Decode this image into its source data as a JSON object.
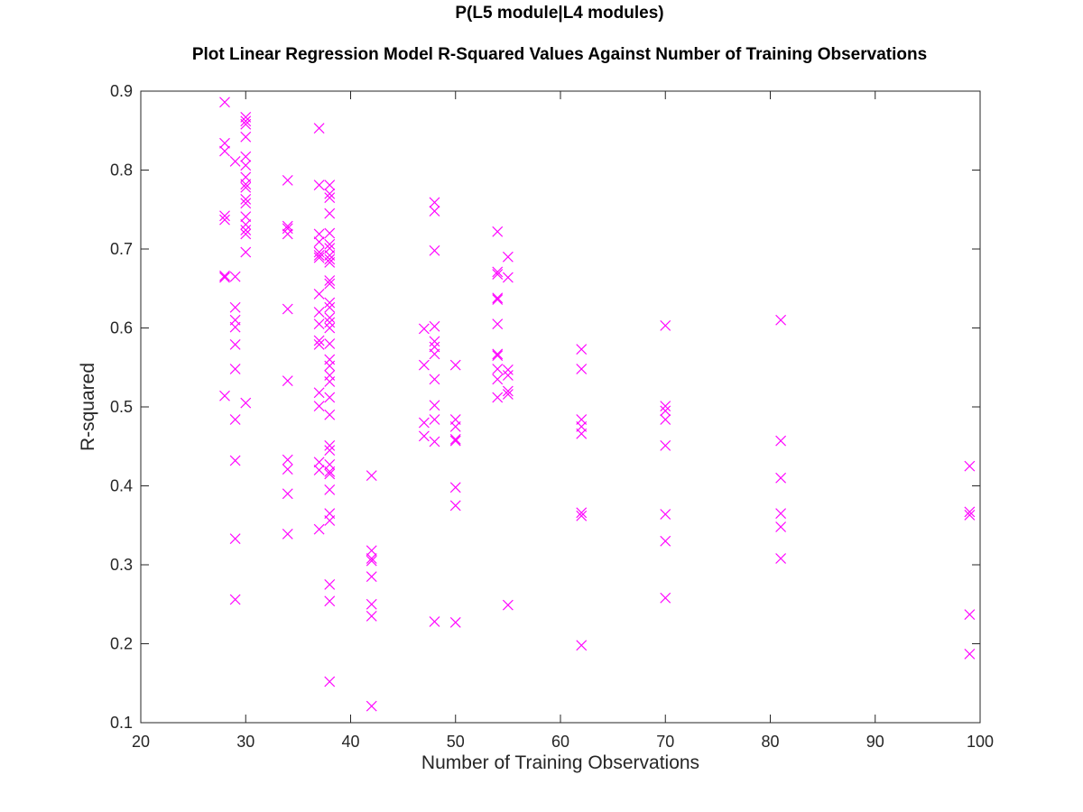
{
  "figure": {
    "supertitle": "P(L5 module|L4 modules)",
    "title": "Plot Linear Regression Model R-Squared Values Against Number of Training Observations"
  },
  "chart_data": {
    "type": "scatter",
    "title": "Plot Linear Regression Model R-Squared Values Against Number of Training Observations",
    "xlabel": "Number of Training Observations",
    "ylabel": "R-squared",
    "xlim": [
      20,
      100
    ],
    "ylim": [
      0.1,
      0.9
    ],
    "xticks": [
      20,
      30,
      40,
      50,
      60,
      70,
      80,
      90,
      100
    ],
    "yticks": [
      0.1,
      0.2,
      0.3,
      0.4,
      0.5,
      0.6,
      0.7,
      0.8,
      0.9
    ],
    "grid": false,
    "marker": "x",
    "marker_color": "#ff00ff",
    "points": [
      [
        28,
        0.886
      ],
      [
        28,
        0.834
      ],
      [
        28,
        0.824
      ],
      [
        28,
        0.742
      ],
      [
        28,
        0.737
      ],
      [
        28,
        0.666
      ],
      [
        28,
        0.664
      ],
      [
        28,
        0.514
      ],
      [
        29,
        0.811
      ],
      [
        29,
        0.665
      ],
      [
        29,
        0.626
      ],
      [
        29,
        0.61
      ],
      [
        29,
        0.601
      ],
      [
        29,
        0.579
      ],
      [
        29,
        0.548
      ],
      [
        29,
        0.484
      ],
      [
        29,
        0.432
      ],
      [
        29,
        0.333
      ],
      [
        29,
        0.256
      ],
      [
        30,
        0.867
      ],
      [
        30,
        0.862
      ],
      [
        30,
        0.858
      ],
      [
        30,
        0.842
      ],
      [
        30,
        0.817
      ],
      [
        30,
        0.806
      ],
      [
        30,
        0.791
      ],
      [
        30,
        0.782
      ],
      [
        30,
        0.778
      ],
      [
        30,
        0.763
      ],
      [
        30,
        0.758
      ],
      [
        30,
        0.741
      ],
      [
        30,
        0.731
      ],
      [
        30,
        0.724
      ],
      [
        30,
        0.719
      ],
      [
        30,
        0.696
      ],
      [
        30,
        0.505
      ],
      [
        34,
        0.787
      ],
      [
        34,
        0.729
      ],
      [
        34,
        0.726
      ],
      [
        34,
        0.719
      ],
      [
        34,
        0.624
      ],
      [
        34,
        0.533
      ],
      [
        34,
        0.433
      ],
      [
        34,
        0.421
      ],
      [
        34,
        0.39
      ],
      [
        34,
        0.339
      ],
      [
        37,
        0.853
      ],
      [
        37,
        0.781
      ],
      [
        37,
        0.719
      ],
      [
        37,
        0.709
      ],
      [
        37,
        0.696
      ],
      [
        37,
        0.692
      ],
      [
        37,
        0.689
      ],
      [
        37,
        0.643
      ],
      [
        37,
        0.62
      ],
      [
        37,
        0.605
      ],
      [
        37,
        0.584
      ],
      [
        37,
        0.579
      ],
      [
        37,
        0.518
      ],
      [
        37,
        0.501
      ],
      [
        37,
        0.43
      ],
      [
        37,
        0.42
      ],
      [
        37,
        0.345
      ],
      [
        38,
        0.781
      ],
      [
        38,
        0.77
      ],
      [
        38,
        0.765
      ],
      [
        38,
        0.745
      ],
      [
        38,
        0.72
      ],
      [
        38,
        0.706
      ],
      [
        38,
        0.701
      ],
      [
        38,
        0.692
      ],
      [
        38,
        0.687
      ],
      [
        38,
        0.683
      ],
      [
        38,
        0.66
      ],
      [
        38,
        0.656
      ],
      [
        38,
        0.632
      ],
      [
        38,
        0.626
      ],
      [
        38,
        0.613
      ],
      [
        38,
        0.607
      ],
      [
        38,
        0.6
      ],
      [
        38,
        0.58
      ],
      [
        38,
        0.56
      ],
      [
        38,
        0.552
      ],
      [
        38,
        0.54
      ],
      [
        38,
        0.532
      ],
      [
        38,
        0.512
      ],
      [
        38,
        0.49
      ],
      [
        38,
        0.451
      ],
      [
        38,
        0.445
      ],
      [
        38,
        0.427
      ],
      [
        38,
        0.418
      ],
      [
        38,
        0.415
      ],
      [
        38,
        0.395
      ],
      [
        38,
        0.365
      ],
      [
        38,
        0.356
      ],
      [
        38,
        0.275
      ],
      [
        38,
        0.254
      ],
      [
        38,
        0.152
      ],
      [
        42,
        0.413
      ],
      [
        42,
        0.318
      ],
      [
        42,
        0.308
      ],
      [
        42,
        0.305
      ],
      [
        42,
        0.285
      ],
      [
        42,
        0.25
      ],
      [
        42,
        0.235
      ],
      [
        42,
        0.121
      ],
      [
        47,
        0.599
      ],
      [
        47,
        0.553
      ],
      [
        47,
        0.48
      ],
      [
        47,
        0.463
      ],
      [
        48,
        0.759
      ],
      [
        48,
        0.748
      ],
      [
        48,
        0.698
      ],
      [
        48,
        0.602
      ],
      [
        48,
        0.583
      ],
      [
        48,
        0.576
      ],
      [
        48,
        0.567
      ],
      [
        48,
        0.535
      ],
      [
        48,
        0.502
      ],
      [
        48,
        0.484
      ],
      [
        48,
        0.456
      ],
      [
        48,
        0.228
      ],
      [
        50,
        0.553
      ],
      [
        50,
        0.484
      ],
      [
        50,
        0.475
      ],
      [
        50,
        0.459
      ],
      [
        50,
        0.457
      ],
      [
        50,
        0.398
      ],
      [
        50,
        0.375
      ],
      [
        50,
        0.227
      ],
      [
        54,
        0.722
      ],
      [
        54,
        0.671
      ],
      [
        54,
        0.668
      ],
      [
        54,
        0.638
      ],
      [
        54,
        0.636
      ],
      [
        54,
        0.605
      ],
      [
        54,
        0.567
      ],
      [
        54,
        0.565
      ],
      [
        54,
        0.548
      ],
      [
        54,
        0.535
      ],
      [
        54,
        0.512
      ],
      [
        55,
        0.69
      ],
      [
        55,
        0.664
      ],
      [
        55,
        0.547
      ],
      [
        55,
        0.54
      ],
      [
        55,
        0.52
      ],
      [
        55,
        0.516
      ],
      [
        55,
        0.249
      ],
      [
        62,
        0.573
      ],
      [
        62,
        0.548
      ],
      [
        62,
        0.484
      ],
      [
        62,
        0.475
      ],
      [
        62,
        0.466
      ],
      [
        62,
        0.366
      ],
      [
        62,
        0.362
      ],
      [
        62,
        0.198
      ],
      [
        70,
        0.603
      ],
      [
        70,
        0.501
      ],
      [
        70,
        0.495
      ],
      [
        70,
        0.484
      ],
      [
        70,
        0.451
      ],
      [
        70,
        0.364
      ],
      [
        70,
        0.33
      ],
      [
        70,
        0.258
      ],
      [
        81,
        0.61
      ],
      [
        81,
        0.457
      ],
      [
        81,
        0.41
      ],
      [
        81,
        0.365
      ],
      [
        81,
        0.348
      ],
      [
        81,
        0.308
      ],
      [
        99,
        0.425
      ],
      [
        99,
        0.367
      ],
      [
        99,
        0.363
      ],
      [
        99,
        0.237
      ],
      [
        99,
        0.187
      ]
    ]
  }
}
